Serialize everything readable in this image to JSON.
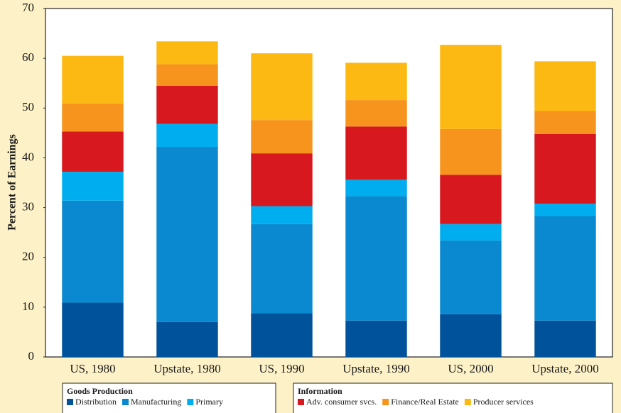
{
  "chart_data": {
    "type": "bar",
    "stacked": true,
    "y_label": "Percent of Earnings",
    "categories": [
      "US, 1980",
      "Upstate, 1980",
      "US, 1990",
      "Upstate, 1990",
      "US, 2000",
      "Upstate, 2000"
    ],
    "ylim": [
      0,
      70
    ],
    "yticks": [
      0,
      10,
      20,
      30,
      40,
      50,
      60,
      70
    ],
    "series_groups": [
      {
        "name": "Goods Production",
        "series": [
          {
            "name": "Distribution",
            "color": "#00539b",
            "values": [
              10.9,
              7.0,
              8.8,
              7.3,
              8.6,
              7.3
            ]
          },
          {
            "name": "Manufacturing",
            "color": "#0a89d0",
            "values": [
              20.5,
              35.2,
              17.9,
              25.0,
              14.8,
              21.0
            ]
          },
          {
            "name": "Primary",
            "color": "#00aeef",
            "values": [
              5.8,
              4.6,
              3.6,
              3.3,
              3.3,
              2.5
            ]
          }
        ]
      },
      {
        "name": "Information",
        "series": [
          {
            "name": "Adv. consumer svcs.",
            "color": "#d7191f",
            "values": [
              8.1,
              7.7,
              10.6,
              10.7,
              9.9,
              14.0
            ]
          },
          {
            "name": "Finance/Real Estate",
            "color": "#f7941d",
            "values": [
              5.6,
              4.3,
              6.7,
              5.3,
              9.2,
              4.6
            ]
          },
          {
            "name": "Producer services",
            "color": "#fdb913",
            "values": [
              9.6,
              4.6,
              13.4,
              7.5,
              16.9,
              10.0
            ]
          }
        ]
      }
    ]
  }
}
